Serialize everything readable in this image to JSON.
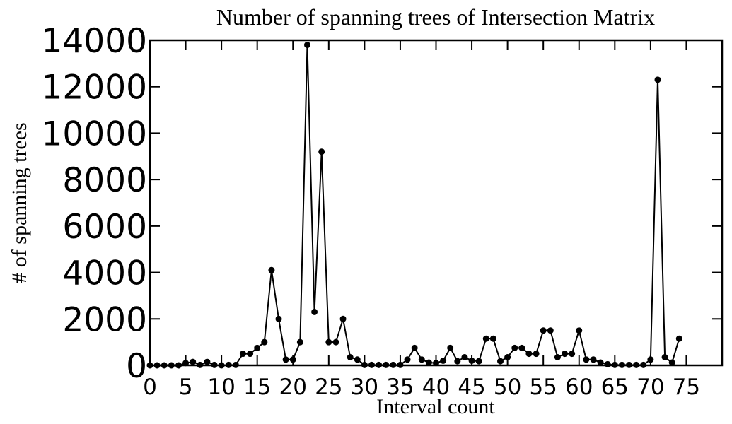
{
  "chart_data": {
    "type": "line",
    "title": "Number of spanning trees of Intersection Matrix",
    "xlabel": "Interval count",
    "ylabel": "# of spanning trees",
    "xlim": [
      0,
      80
    ],
    "ylim": [
      0,
      14000
    ],
    "xticks": [
      0,
      5,
      10,
      15,
      20,
      25,
      30,
      35,
      40,
      45,
      50,
      55,
      60,
      65,
      70,
      75
    ],
    "xtick_labels": [
      "0",
      "5",
      "10",
      "15",
      "20",
      "25",
      "30",
      "35",
      "40",
      "45",
      "50",
      "55",
      "60",
      "65",
      "70",
      "75"
    ],
    "yticks": [
      0,
      2000,
      4000,
      6000,
      8000,
      10000,
      12000,
      14000
    ],
    "ytick_labels": [
      "0",
      "2000",
      "4000",
      "6000",
      "8000",
      "10000",
      "12000",
      "14000"
    ],
    "grid": false,
    "series_color": "#000000",
    "x": [
      0,
      1,
      2,
      3,
      4,
      5,
      6,
      7,
      8,
      9,
      10,
      11,
      12,
      13,
      14,
      15,
      16,
      17,
      18,
      19,
      20,
      21,
      22,
      23,
      24,
      25,
      26,
      27,
      28,
      29,
      30,
      31,
      32,
      33,
      34,
      35,
      36,
      37,
      38,
      39,
      40,
      41,
      42,
      43,
      44,
      45,
      46,
      47,
      48,
      49,
      50,
      51,
      52,
      53,
      54,
      55,
      56,
      57,
      58,
      59,
      60,
      61,
      62,
      63,
      64,
      65,
      66,
      67,
      68,
      69,
      70,
      71,
      72,
      73,
      74
    ],
    "y": [
      0,
      0,
      0,
      0,
      0,
      100,
      150,
      20,
      150,
      20,
      0,
      20,
      20,
      500,
      500,
      750,
      1000,
      4100,
      2000,
      250,
      250,
      1000,
      13800,
      2300,
      9200,
      1000,
      1000,
      2000,
      350,
      250,
      20,
      20,
      20,
      20,
      20,
      20,
      250,
      750,
      250,
      120,
      100,
      200,
      750,
      180,
      350,
      200,
      180,
      1150,
      1150,
      180,
      350,
      750,
      750,
      500,
      500,
      1500,
      1500,
      350,
      500,
      500,
      1500,
      250,
      250,
      120,
      50,
      20,
      20,
      20,
      20,
      20,
      250,
      12300,
      350,
      120,
      1150
    ]
  }
}
